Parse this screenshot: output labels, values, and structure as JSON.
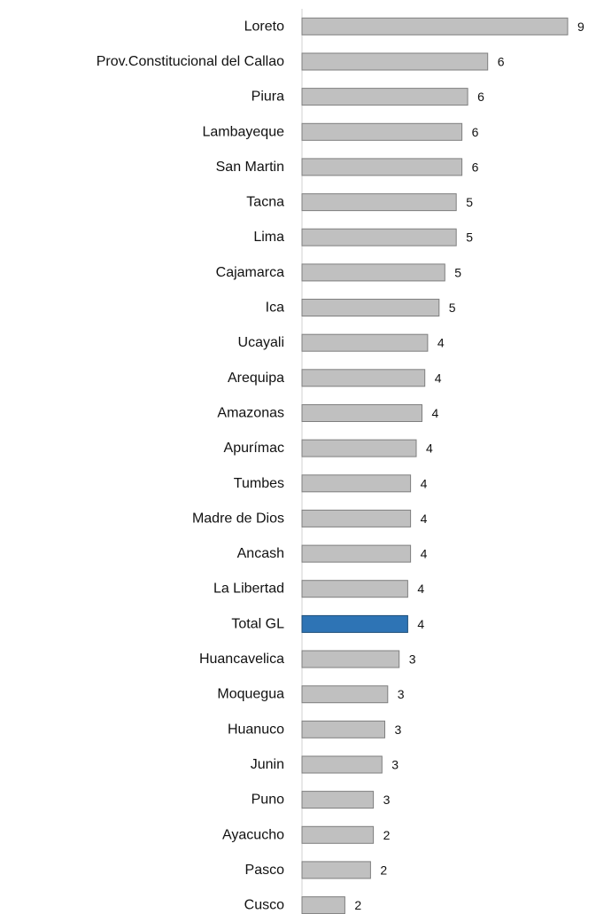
{
  "chart_data": {
    "type": "bar",
    "orientation": "horizontal",
    "categories": [
      "Loreto",
      "Prov.Constitucional del Callao",
      "Piura",
      "Lambayeque",
      "San Martin",
      "Tacna",
      "Lima",
      "Cajamarca",
      "Ica",
      "Ucayali",
      "Arequipa",
      "Amazonas",
      "Apurímac",
      "Tumbes",
      "Madre de Dios",
      "Ancash",
      "La Libertad",
      "Total GL",
      "Huancavelica",
      "Moquegua",
      "Huanuco",
      "Junin",
      "Puno",
      "Ayacucho",
      "Pasco",
      "Cusco"
    ],
    "values": [
      9.3,
      6.5,
      5.8,
      5.6,
      5.6,
      5.4,
      5.4,
      5.0,
      4.8,
      4.4,
      4.3,
      4.2,
      4.0,
      3.8,
      3.8,
      3.8,
      3.7,
      3.7,
      3.4,
      3.0,
      2.9,
      2.8,
      2.5,
      2.5,
      2.4,
      1.5
    ],
    "value_labels": [
      "9",
      "6",
      "6",
      "6",
      "6",
      "5",
      "5",
      "5",
      "5",
      "4",
      "4",
      "4",
      "4",
      "4",
      "4",
      "4",
      "4",
      "4",
      "3",
      "3",
      "3",
      "3",
      "3",
      "2",
      "2",
      "2"
    ],
    "highlight": "Total GL",
    "colors": {
      "bar": "#c0c0c0",
      "bar_border": "#7f7f7f",
      "highlight_bar": "#2e74b5",
      "highlight_border": "#1f4e79",
      "highlight_label": "#1f4e79"
    },
    "title": "",
    "xlabel": "",
    "ylabel": "",
    "xlim": [
      0,
      9.3
    ],
    "grid": false,
    "legend": "none"
  }
}
